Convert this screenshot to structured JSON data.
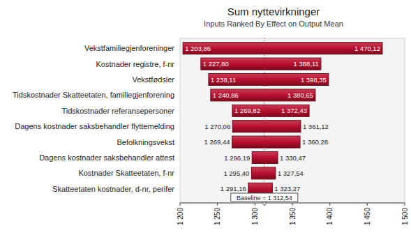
{
  "chart_data": {
    "type": "tornado",
    "title": "Sum nyttevirkninger",
    "subtitle": "Inputs Ranked By Effect on Output Mean",
    "orientation": "horizontal",
    "categories": [
      "Vekstfamiliegjenforeninger",
      "Kostnader registre, f-nr",
      "Vekstfødsler",
      "Tidskostnader Skatteetaten, familiegjenforening",
      "Tidskostnader referansepersoner",
      "Dagens kostnader saksbehandler flyttemelding",
      "Befolkningsvekst",
      "Dagens kostnader saksbehandler attest",
      "Kostnader Skatteetaten, f-nr",
      "Skatteetaten kostnader, d-nr, perifer"
    ],
    "series": [
      {
        "values": [
          1203.86,
          1227.8,
          1238.11,
          1240.86,
          1269.82,
          1270.06,
          1269.44,
          1296.19,
          1295.4,
          1291.16
        ],
        "value_labels": [
          "1 203,86",
          "1 227,80",
          "1 238,11",
          "1 240,86",
          "1 269,82",
          "1 270,06",
          "1 269,44",
          "1 296,19",
          "1 295,40",
          "1 291,16"
        ]
      },
      {
        "values": [
          1470.12,
          1388.11,
          1398.35,
          1380.65,
          1372.43,
          1361.12,
          1360.28,
          1330.47,
          1327.54,
          1323.27
        ],
        "value_labels": [
          "1 470,12",
          "1 388,11",
          "1 398,35",
          "1 380,65",
          "1 372,43",
          "1 361,12",
          "1 360,28",
          "1 330,47",
          "1 327,54",
          "1 323,27"
        ]
      }
    ],
    "baseline": {
      "value": 1312.54,
      "label": "Baseline = 1 312,54"
    },
    "color": "#b8102f",
    "xlim": [
      1200,
      1500
    ],
    "xticks": [
      {
        "value": 1200,
        "label": "1 200"
      },
      {
        "value": 1250,
        "label": "1 250"
      },
      {
        "value": 1300,
        "label": "1 300"
      },
      {
        "value": 1350,
        "label": "1 350"
      },
      {
        "value": 1400,
        "label": "1 400"
      },
      {
        "value": 1450,
        "label": "1 450"
      },
      {
        "value": 1500,
        "label": "1 500"
      }
    ],
    "grid": false,
    "data_labels": true
  }
}
